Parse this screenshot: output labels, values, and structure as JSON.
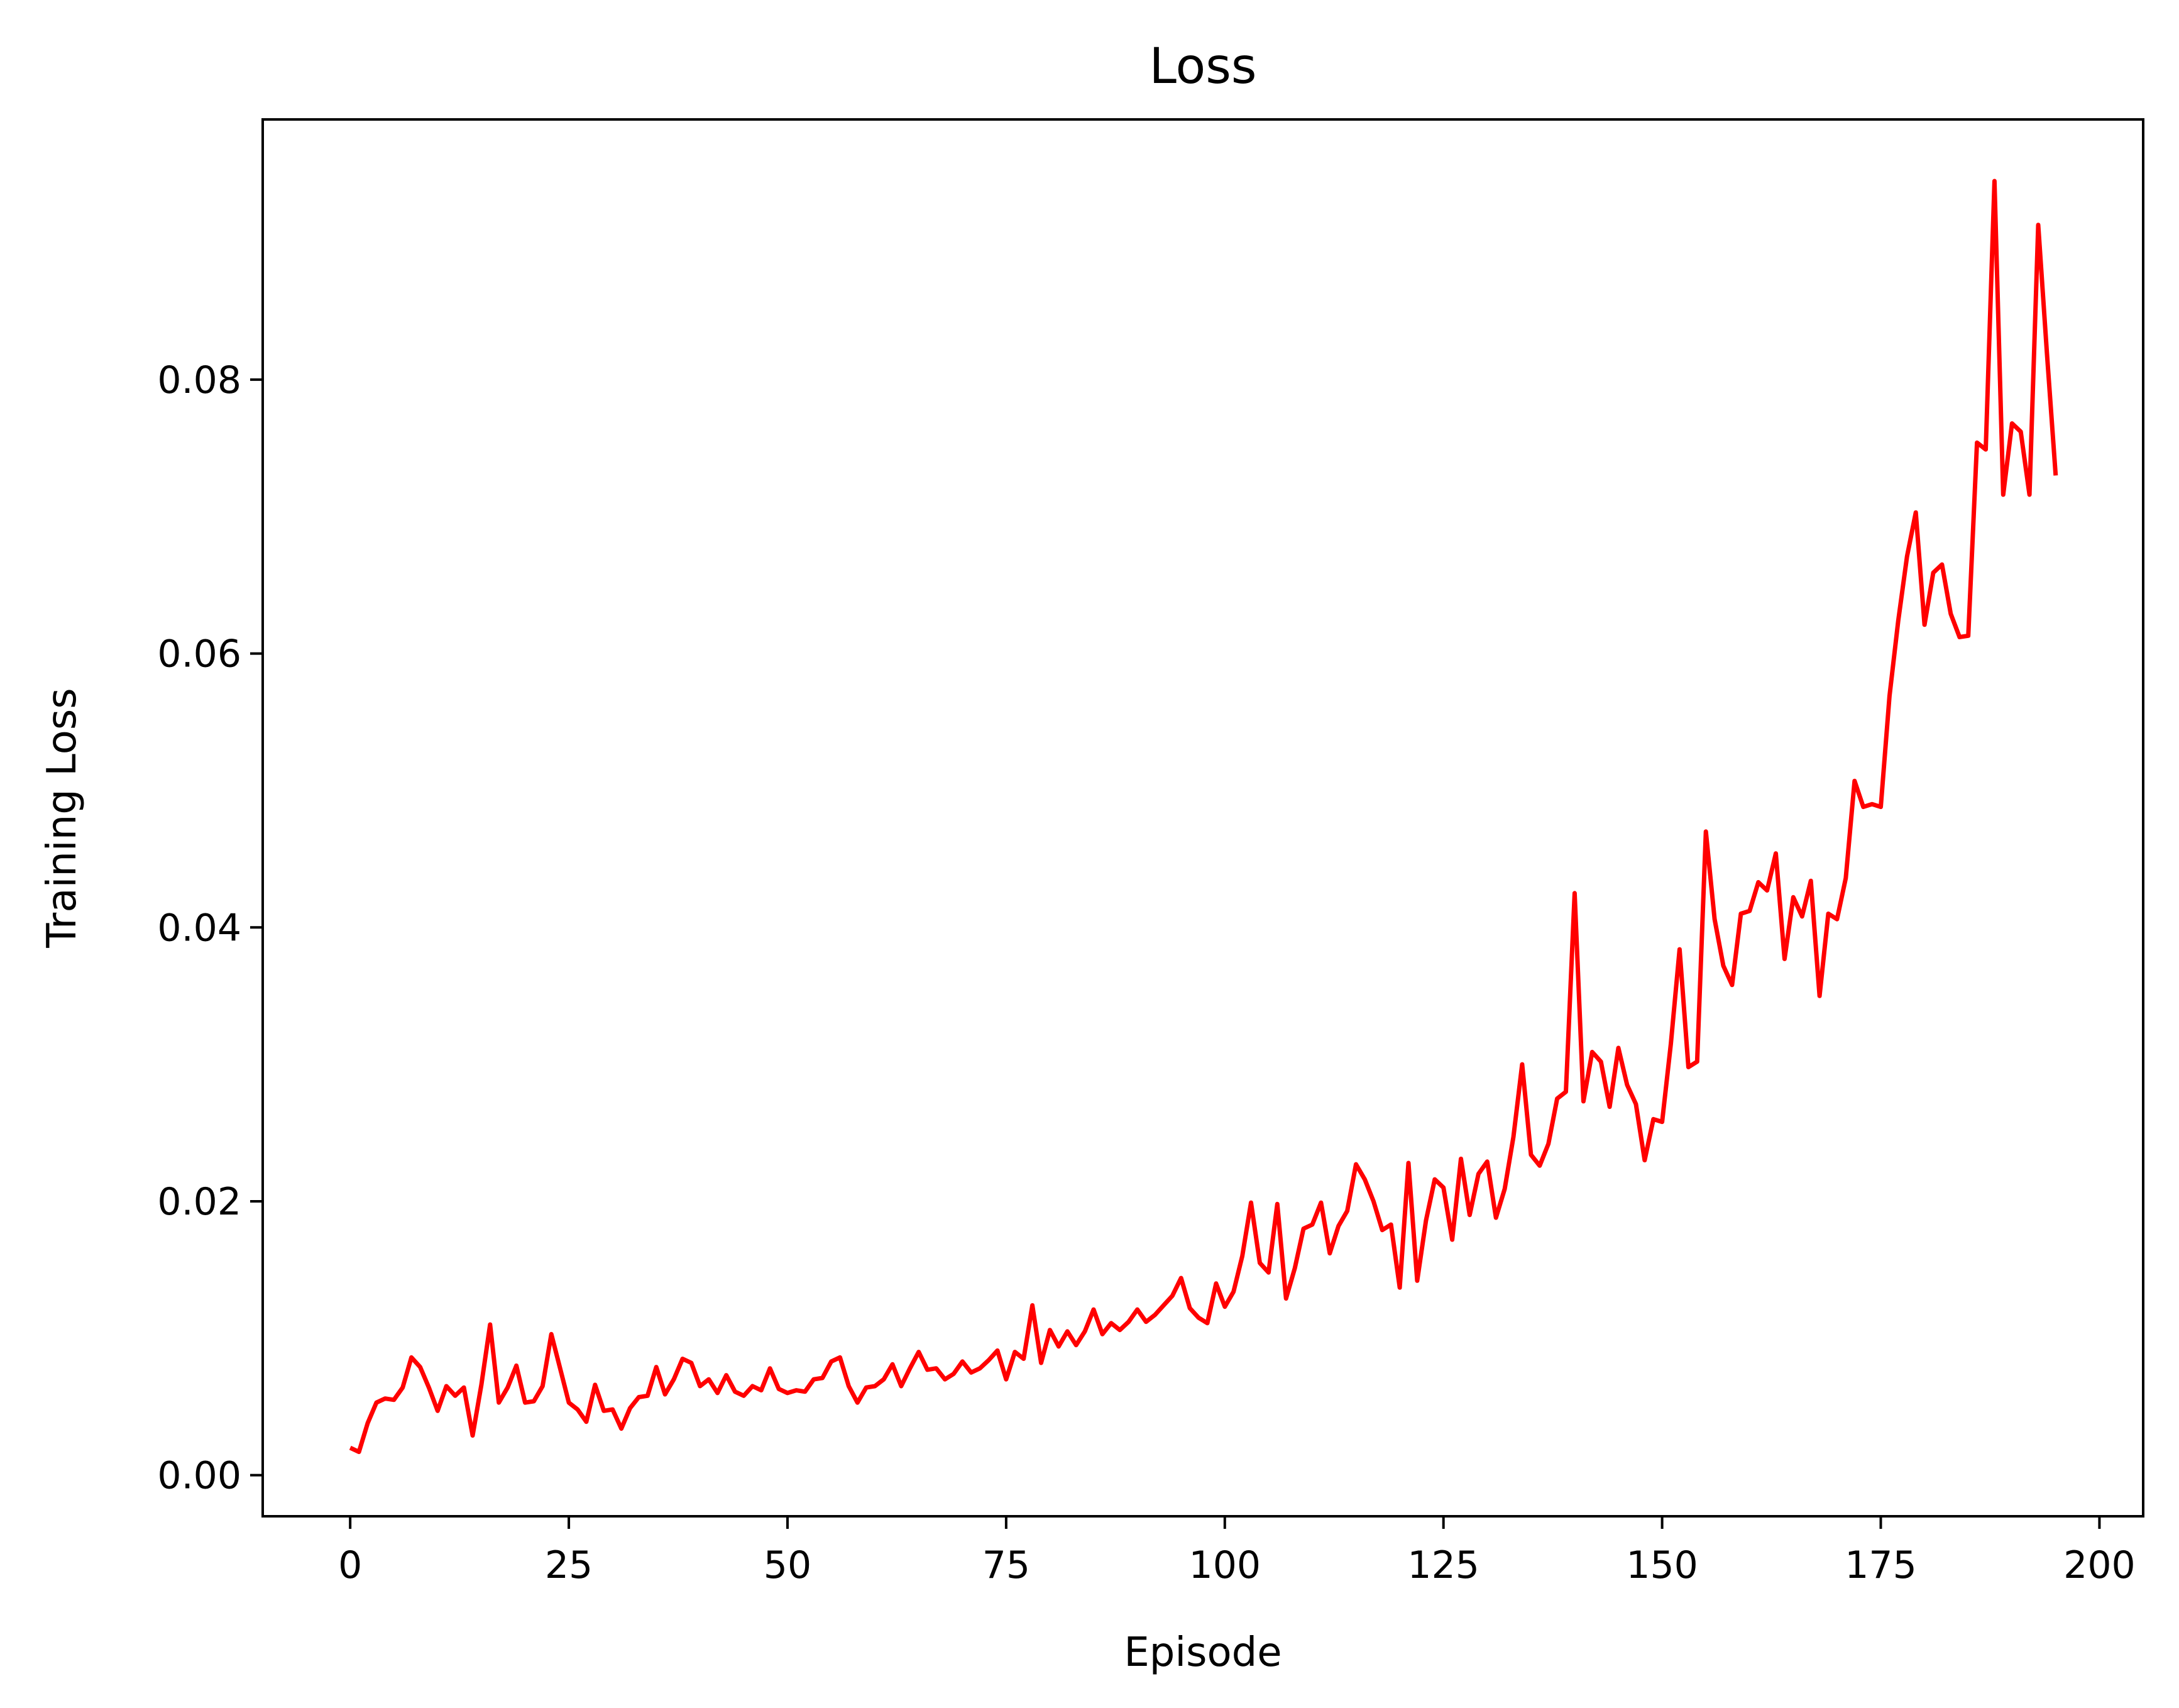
{
  "chart_data": {
    "type": "line",
    "title": "Loss",
    "xlabel": "Episode",
    "ylabel": "Training Loss",
    "xlim": [
      -10,
      205
    ],
    "ylim": [
      -0.003,
      0.099
    ],
    "xticks": [
      0,
      25,
      50,
      75,
      100,
      125,
      150,
      175,
      200
    ],
    "xtick_labels": [
      "0",
      "25",
      "50",
      "75",
      "100",
      "125",
      "150",
      "175",
      "200"
    ],
    "yticks": [
      0.0,
      0.02,
      0.04,
      0.06,
      0.08
    ],
    "ytick_labels": [
      "0.00",
      "0.02",
      "0.04",
      "0.06",
      "0.08"
    ],
    "grid": false,
    "series": [
      {
        "color": "#ff0000",
        "x": [
          0,
          1,
          2,
          3,
          4,
          5,
          6,
          7,
          8,
          9,
          10,
          11,
          12,
          13,
          14,
          15,
          16,
          17,
          18,
          19,
          20,
          21,
          22,
          23,
          24,
          25,
          26,
          27,
          28,
          29,
          30,
          31,
          32,
          33,
          34,
          35,
          36,
          37,
          38,
          39,
          40,
          41,
          42,
          43,
          44,
          45,
          46,
          47,
          48,
          49,
          50,
          51,
          52,
          53,
          54,
          55,
          56,
          57,
          58,
          59,
          60,
          61,
          62,
          63,
          64,
          65,
          66,
          67,
          68,
          69,
          70,
          71,
          72,
          73,
          74,
          75,
          76,
          77,
          78,
          79,
          80,
          81,
          82,
          83,
          84,
          85,
          86,
          87,
          88,
          89,
          90,
          91,
          92,
          93,
          94,
          95,
          96,
          97,
          98,
          99,
          100,
          101,
          102,
          103,
          104,
          105,
          106,
          107,
          108,
          109,
          110,
          111,
          112,
          113,
          114,
          115,
          116,
          117,
          118,
          119,
          120,
          121,
          122,
          123,
          124,
          125,
          126,
          127,
          128,
          129,
          130,
          131,
          132,
          133,
          134,
          135,
          136,
          137,
          138,
          139,
          140,
          141,
          142,
          143,
          144,
          145,
          146,
          147,
          148,
          149,
          150,
          151,
          152,
          153,
          154,
          155,
          156,
          157,
          158,
          159,
          160,
          161,
          162,
          163,
          164,
          165,
          166,
          167,
          168,
          169,
          170,
          171,
          172,
          173,
          174,
          175,
          176,
          177,
          178,
          179,
          180,
          181,
          182,
          183,
          184,
          185,
          186,
          187,
          188,
          189,
          190,
          191,
          192,
          193,
          194,
          195
        ],
        "y": [
          0.002,
          0.0017,
          0.0038,
          0.0053,
          0.0056,
          0.0055,
          0.0064,
          0.0086,
          0.0079,
          0.0064,
          0.0047,
          0.0065,
          0.0058,
          0.0064,
          0.0029,
          0.0066,
          0.011,
          0.0053,
          0.0064,
          0.008,
          0.0053,
          0.0054,
          0.0065,
          0.0103,
          0.0078,
          0.0053,
          0.0048,
          0.0039,
          0.0066,
          0.0047,
          0.0048,
          0.0034,
          0.0049,
          0.0057,
          0.0058,
          0.0079,
          0.0059,
          0.007,
          0.0085,
          0.0082,
          0.0065,
          0.007,
          0.006,
          0.0073,
          0.0061,
          0.0058,
          0.0065,
          0.0062,
          0.0078,
          0.0063,
          0.006,
          0.0062,
          0.0061,
          0.007,
          0.0071,
          0.0083,
          0.0086,
          0.0065,
          0.0053,
          0.0064,
          0.0065,
          0.007,
          0.0081,
          0.0065,
          0.0078,
          0.009,
          0.0077,
          0.0078,
          0.007,
          0.0074,
          0.0083,
          0.0075,
          0.0078,
          0.0084,
          0.0091,
          0.007,
          0.009,
          0.0085,
          0.0124,
          0.0082,
          0.0106,
          0.0094,
          0.0105,
          0.0095,
          0.0105,
          0.0121,
          0.0103,
          0.0111,
          0.0106,
          0.0112,
          0.0121,
          0.0112,
          0.0117,
          0.0124,
          0.0131,
          0.0144,
          0.0122,
          0.0115,
          0.0111,
          0.014,
          0.0123,
          0.0134,
          0.016,
          0.0199,
          0.0155,
          0.0148,
          0.0198,
          0.0129,
          0.0151,
          0.018,
          0.0183,
          0.0199,
          0.0162,
          0.0182,
          0.0193,
          0.0227,
          0.0216,
          0.02,
          0.0179,
          0.0183,
          0.0137,
          0.0228,
          0.0142,
          0.0186,
          0.0216,
          0.021,
          0.0172,
          0.0231,
          0.019,
          0.022,
          0.0229,
          0.0188,
          0.0209,
          0.0247,
          0.03,
          0.0234,
          0.0226,
          0.0242,
          0.0275,
          0.028,
          0.0425,
          0.0273,
          0.0309,
          0.0302,
          0.0269,
          0.0312,
          0.0285,
          0.0271,
          0.023,
          0.026,
          0.0258,
          0.0315,
          0.0384,
          0.0298,
          0.0302,
          0.047,
          0.0406,
          0.0372,
          0.0358,
          0.041,
          0.0412,
          0.0433,
          0.0427,
          0.0454,
          0.0377,
          0.0422,
          0.0408,
          0.0434,
          0.035,
          0.041,
          0.0406,
          0.0436,
          0.0507,
          0.0488,
          0.049,
          0.0488,
          0.0569,
          0.0624,
          0.0671,
          0.0703,
          0.0621,
          0.0659,
          0.0665,
          0.0629,
          0.0612,
          0.0613,
          0.0754,
          0.0749,
          0.0945,
          0.0716,
          0.0768,
          0.0762,
          0.0716,
          0.0913,
          0.0819,
          0.073
        ]
      }
    ]
  }
}
